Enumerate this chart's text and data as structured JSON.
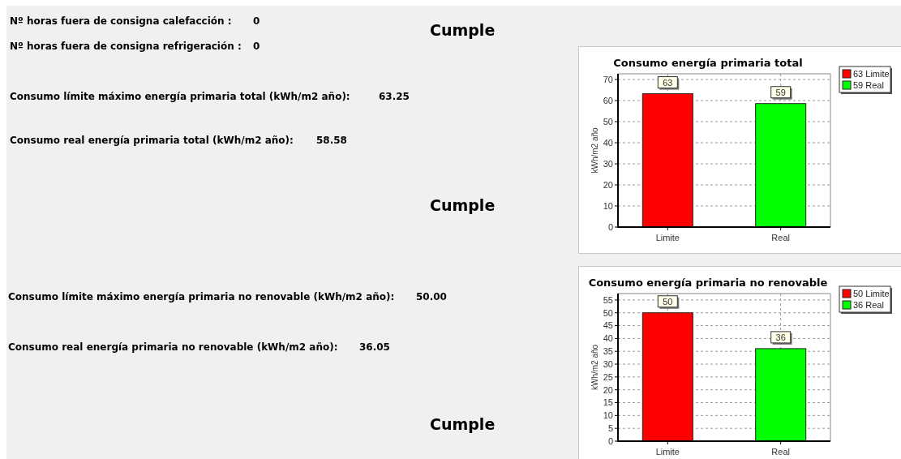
{
  "chart_data": [
    {
      "type": "other",
      "annotations": [
        "Nº horas fuera de consigna calefacción :",
        "0",
        "Nº horas fuera de consigna refrigeración :",
        "0",
        "Cumple",
        "Consumo límite máximo energía primaria total (kWh/m2 año):",
        "63.25",
        "Consumo real energía primaria total (kWh/m2 año):",
        "58.58",
        "Cumple",
        "Consumo límite máximo energía primaria no renovable (kWh/m2 año):",
        "50.00",
        "Consumo real energía primaria no renovable (kWh/m2 año):",
        "36.05",
        "Cumple"
      ]
    },
    {
      "type": "bar",
      "title": "Consumo energía primaria total",
      "ylabel": "kWh/m2 año",
      "categories": [
        "Limite",
        "Real"
      ],
      "stacked": true,
      "series": [
        {
          "name": "63 Limite",
          "color": "#ff0000",
          "values": [
            63.25,
            null
          ],
          "value_labels": [
            "63",
            null
          ]
        },
        {
          "name": "59 Real",
          "color": "#00ff00",
          "values": [
            null,
            58.58
          ],
          "value_labels": [
            null,
            "59"
          ]
        }
      ],
      "ylim": [
        0,
        72.7
      ],
      "yticks": [
        0,
        10,
        20,
        30,
        40,
        50,
        60,
        70
      ],
      "grid": true,
      "legend": "top right"
    },
    {
      "type": "bar",
      "title": "Consumo energía primaria no renovable",
      "ylabel": "kWh/m2 año",
      "categories": [
        "Limite",
        "Real"
      ],
      "stacked": true,
      "series": [
        {
          "name": "50 Limite",
          "color": "#ff0000",
          "values": [
            50,
            null
          ],
          "value_labels": [
            "50",
            null
          ]
        },
        {
          "name": "36 Real",
          "color": "#00ff00",
          "values": [
            null,
            36.05
          ],
          "value_labels": [
            null,
            "36"
          ]
        }
      ],
      "ylim": [
        0,
        57.5
      ],
      "yticks": [
        0,
        5,
        10,
        15,
        20,
        25,
        30,
        35,
        40,
        45,
        50,
        55
      ],
      "grid": true,
      "legend": "top right"
    }
  ]
}
